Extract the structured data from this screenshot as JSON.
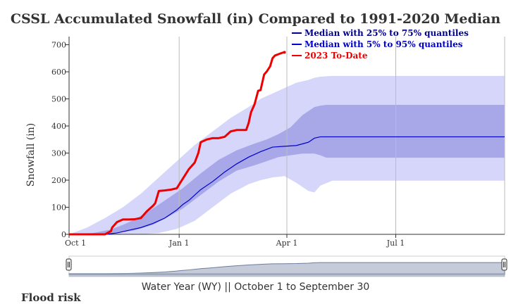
{
  "chart_data": {
    "type": "area",
    "title": "CSSL Accumulated Snowfall (in) Compared to 1991-2020 Median",
    "ylabel": "Snowfall (in)",
    "xlabel": "",
    "ylim": [
      0,
      730
    ],
    "yticks": [
      0,
      100,
      200,
      300,
      400,
      500,
      600,
      700
    ],
    "xlim": [
      "Oct 1",
      "Sep 30"
    ],
    "xticks": [
      {
        "label": "Oct 1",
        "day": 0
      },
      {
        "label": "Jan 1",
        "day": 92
      },
      {
        "label": "Apr 1",
        "day": 182
      },
      {
        "label": "Jul 1",
        "day": 273
      }
    ],
    "grid": true,
    "legend_position": "top-right",
    "series": [
      {
        "name": "Median with 25% to 75% quantiles",
        "color": "#00008b",
        "kind": "band",
        "fill": "#a8a8e8",
        "x": [
          0,
          20,
          35,
          45,
          55,
          70,
          85,
          95,
          110,
          125,
          140,
          155,
          165,
          175,
          185,
          195,
          205,
          210,
          215,
          230,
          260,
          300,
          364
        ],
        "low": [
          0,
          0,
          2,
          8,
          15,
          35,
          70,
          95,
          145,
          195,
          235,
          255,
          270,
          285,
          292,
          298,
          298,
          292,
          283,
          283,
          283,
          283,
          283
        ],
        "high": [
          0,
          5,
          18,
          35,
          55,
          95,
          140,
          170,
          225,
          275,
          310,
          335,
          350,
          370,
          395,
          440,
          470,
          475,
          478,
          478,
          478,
          478,
          478
        ]
      },
      {
        "name": "Median with 5% to 95% quantiles",
        "color": "#0000cd",
        "kind": "band",
        "fill": "#d6d6fb",
        "x": [
          0,
          15,
          30,
          45,
          60,
          75,
          90,
          105,
          120,
          135,
          150,
          160,
          170,
          180,
          190,
          200,
          205,
          210,
          220,
          240,
          270,
          300,
          364
        ],
        "low": [
          0,
          0,
          0,
          0,
          0,
          5,
          20,
          50,
          100,
          150,
          185,
          200,
          210,
          215,
          190,
          160,
          155,
          180,
          198,
          198,
          198,
          198,
          198
        ],
        "high": [
          0,
          25,
          60,
          100,
          150,
          210,
          270,
          330,
          380,
          430,
          470,
          500,
          520,
          540,
          560,
          570,
          578,
          582,
          585,
          585,
          585,
          585,
          585
        ]
      },
      {
        "name": "Median",
        "color": "#0000cd",
        "kind": "line",
        "x": [
          0,
          30,
          40,
          50,
          60,
          70,
          80,
          90,
          95,
          100,
          110,
          120,
          130,
          140,
          150,
          160,
          170,
          180,
          190,
          200,
          205,
          210,
          364
        ],
        "values": [
          0,
          0,
          5,
          15,
          25,
          40,
          60,
          90,
          110,
          125,
          165,
          195,
          230,
          260,
          285,
          305,
          322,
          325,
          328,
          340,
          355,
          360,
          360
        ]
      },
      {
        "name": "2023 To-Date",
        "color": "#ee0000",
        "kind": "line",
        "x": [
          0,
          30,
          35,
          36,
          40,
          45,
          50,
          55,
          60,
          65,
          70,
          72,
          75,
          80,
          85,
          90,
          95,
          100,
          105,
          108,
          110,
          115,
          120,
          125,
          130,
          135,
          140,
          148,
          150,
          152,
          155,
          158,
          160,
          163,
          165,
          168,
          170,
          172,
          175,
          178,
          180
        ],
        "values": [
          0,
          0,
          12,
          25,
          45,
          55,
          55,
          56,
          60,
          85,
          105,
          115,
          160,
          162,
          165,
          170,
          205,
          240,
          265,
          300,
          340,
          350,
          355,
          355,
          360,
          380,
          385,
          385,
          410,
          450,
          480,
          530,
          532,
          590,
          600,
          620,
          650,
          660,
          665,
          670,
          672
        ]
      }
    ],
    "navigator": {
      "label": "Water Year (WY) || October 1 to September 30"
    }
  },
  "page": {
    "cut_text": "Flood risk"
  }
}
